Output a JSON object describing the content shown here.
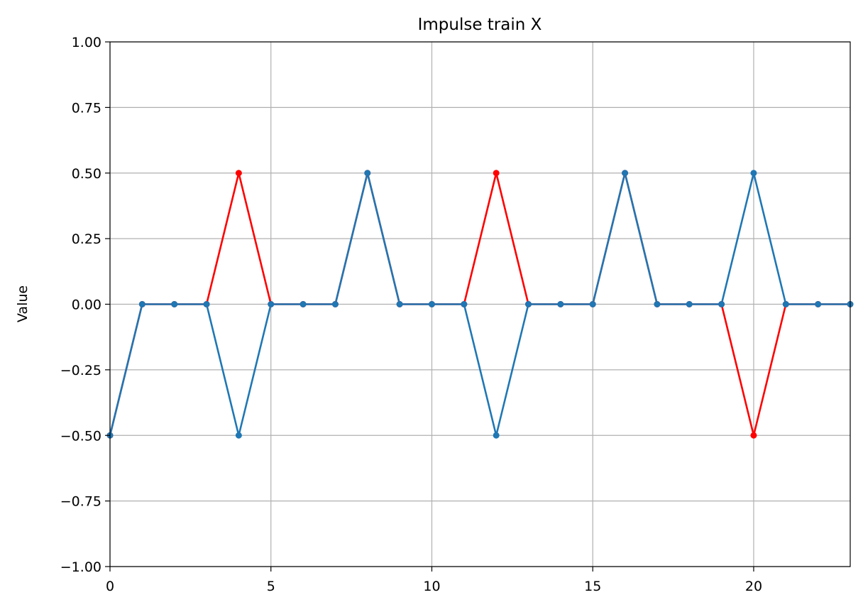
{
  "chart_data": {
    "type": "line",
    "title": "Impulse train X",
    "xlabel": "",
    "ylabel": "Value",
    "xlim": [
      0,
      23
    ],
    "ylim": [
      -1.0,
      1.0
    ],
    "grid": true,
    "x_ticks": [
      0,
      5,
      10,
      15,
      20
    ],
    "x_tick_labels": [
      "0",
      "5",
      "10",
      "15",
      "20"
    ],
    "y_ticks": [
      1.0,
      0.75,
      0.5,
      0.25,
      0.0,
      -0.25,
      -0.5,
      -0.75,
      -1.0
    ],
    "y_tick_labels": [
      "1.00",
      "0.75",
      "0.50",
      "0.25",
      "0.00",
      "−0.25",
      "−0.50",
      "−0.75",
      "−1.00"
    ],
    "x": [
      0,
      1,
      2,
      3,
      4,
      5,
      6,
      7,
      8,
      9,
      10,
      11,
      12,
      13,
      14,
      15,
      16,
      17,
      18,
      19,
      20,
      21,
      22,
      23
    ],
    "series": [
      {
        "color": "#ff0000",
        "values": [
          -0.5,
          0,
          0,
          0,
          0.5,
          0,
          0,
          0,
          0.5,
          0,
          0,
          0,
          0.5,
          0,
          0,
          0,
          0.5,
          0,
          0,
          0,
          -0.5,
          0,
          0,
          0
        ]
      },
      {
        "color": "#1f77b4",
        "values": [
          -0.5,
          0,
          0,
          0,
          -0.5,
          0,
          0,
          0,
          0.5,
          0,
          0,
          0,
          -0.5,
          0,
          0,
          0,
          0.5,
          0,
          0,
          0,
          0.5,
          0,
          0,
          0
        ]
      }
    ]
  }
}
